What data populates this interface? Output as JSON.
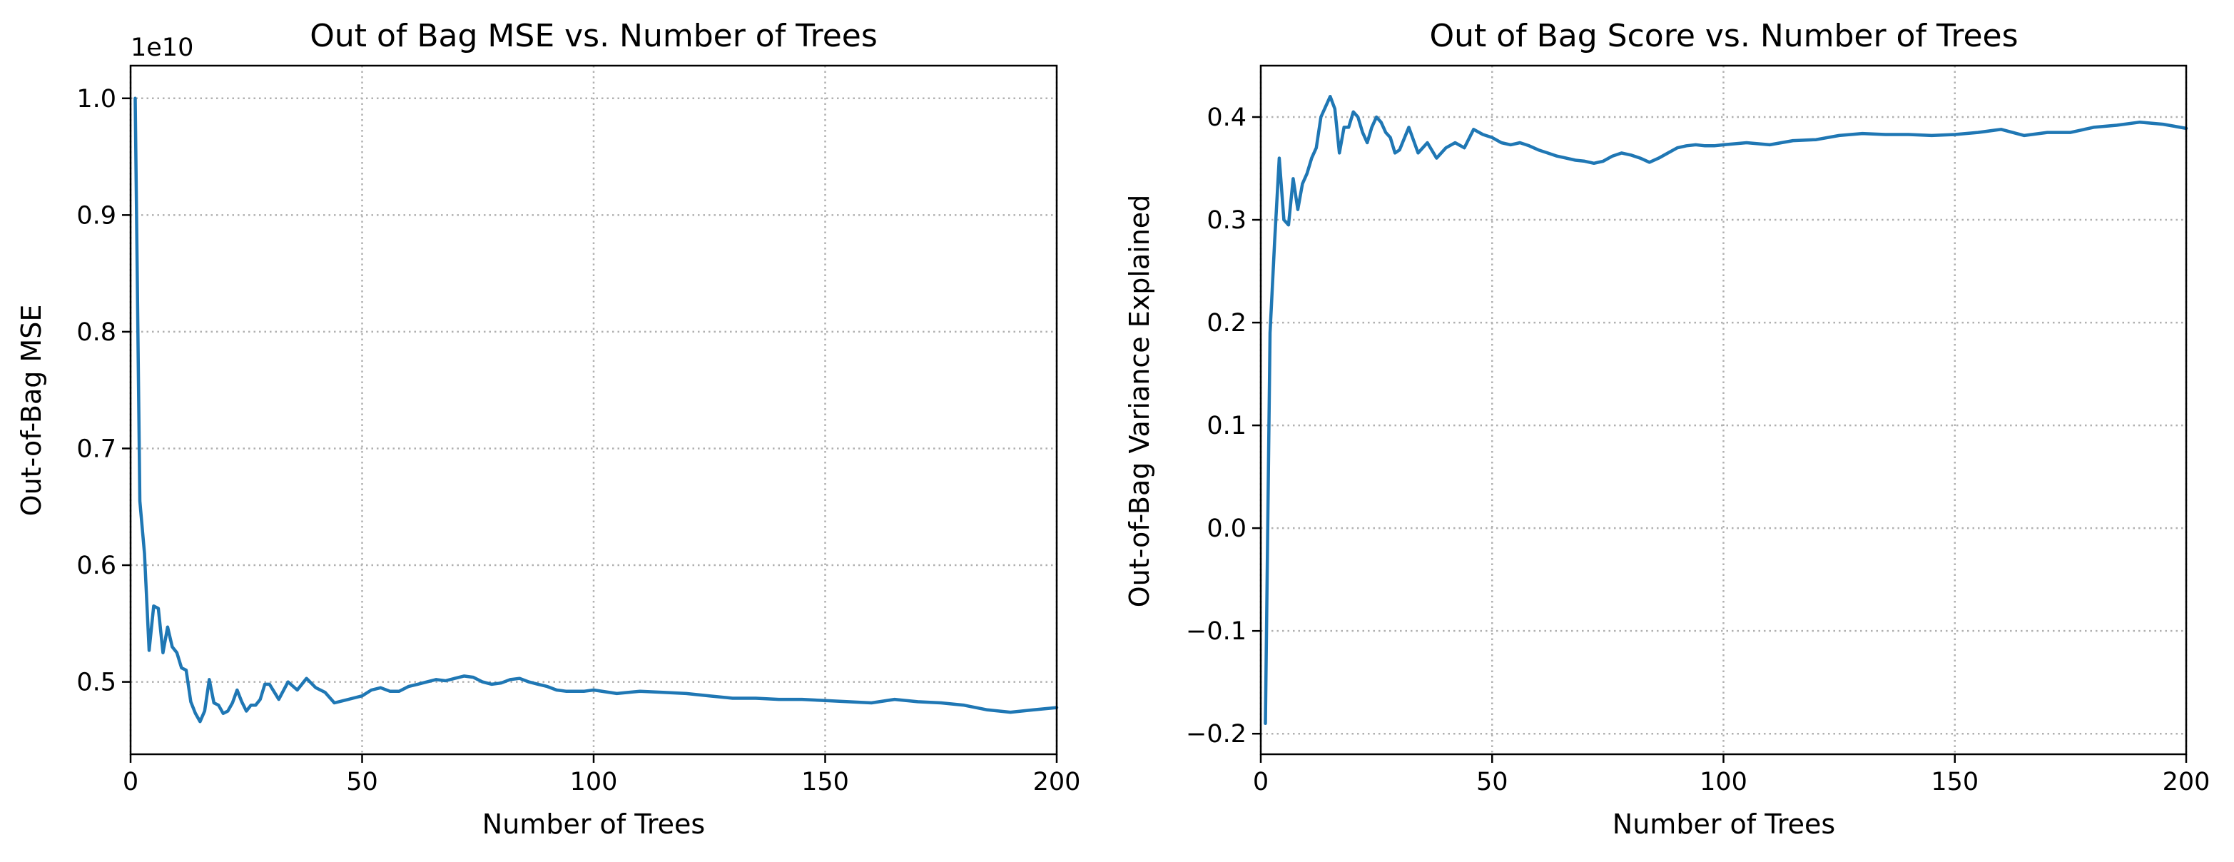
{
  "colors": {
    "line": "#1f77b4"
  },
  "chart_data": [
    {
      "type": "line",
      "title": "Out of Bag MSE vs. Number of Trees",
      "xlabel": "Number of Trees",
      "ylabel": "Out-of-Bag MSE",
      "offset_text": "1e10",
      "xlim": [
        0,
        200
      ],
      "ylim": [
        4.38,
        10.28
      ],
      "xticks": [
        0,
        50,
        100,
        150,
        200
      ],
      "xtick_labels": [
        "0",
        "50",
        "100",
        "150",
        "200"
      ],
      "yticks": [
        5.0,
        6.0,
        7.0,
        8.0,
        9.0,
        10.0
      ],
      "ytick_labels": [
        "0.5",
        "0.6",
        "0.7",
        "0.8",
        "0.9",
        "1.0"
      ],
      "grid": true,
      "series": [
        {
          "x": [
            1,
            2,
            3,
            4,
            5,
            6,
            7,
            8,
            9,
            10,
            11,
            12,
            13,
            14,
            15,
            16,
            17,
            18,
            19,
            20,
            21,
            22,
            23,
            24,
            25,
            26,
            27,
            28,
            29,
            30,
            32,
            34,
            36,
            38,
            40,
            42,
            44,
            46,
            48,
            50,
            52,
            54,
            56,
            58,
            60,
            62,
            64,
            66,
            68,
            70,
            72,
            74,
            76,
            78,
            80,
            82,
            84,
            86,
            88,
            90,
            92,
            94,
            96,
            98,
            100,
            105,
            110,
            115,
            120,
            125,
            130,
            135,
            140,
            145,
            150,
            155,
            160,
            165,
            170,
            175,
            180,
            185,
            190,
            195,
            200
          ],
          "values": [
            10.0,
            6.55,
            6.1,
            5.27,
            5.65,
            5.63,
            5.25,
            5.47,
            5.3,
            5.25,
            5.12,
            5.1,
            4.83,
            4.73,
            4.66,
            4.75,
            5.02,
            4.82,
            4.8,
            4.73,
            4.75,
            4.82,
            4.93,
            4.83,
            4.75,
            4.8,
            4.8,
            4.85,
            4.98,
            4.98,
            4.85,
            5.0,
            4.93,
            5.03,
            4.95,
            4.91,
            4.82,
            4.84,
            4.86,
            4.88,
            4.93,
            4.95,
            4.92,
            4.92,
            4.96,
            4.98,
            5.0,
            5.02,
            5.01,
            5.03,
            5.05,
            5.04,
            5.0,
            4.98,
            4.99,
            5.02,
            5.03,
            5.0,
            4.98,
            4.96,
            4.93,
            4.92,
            4.92,
            4.92,
            4.93,
            4.9,
            4.92,
            4.91,
            4.9,
            4.88,
            4.86,
            4.86,
            4.85,
            4.85,
            4.84,
            4.83,
            4.82,
            4.85,
            4.83,
            4.82,
            4.8,
            4.76,
            4.74,
            4.76,
            4.78
          ]
        }
      ]
    },
    {
      "type": "line",
      "title": "Out of Bag Score vs. Number of Trees",
      "xlabel": "Number of Trees",
      "ylabel": "Out-of-Bag Variance Explained",
      "xlim": [
        0,
        200
      ],
      "ylim": [
        -0.22,
        0.45
      ],
      "xticks": [
        0,
        50,
        100,
        150,
        200
      ],
      "xtick_labels": [
        "0",
        "50",
        "100",
        "150",
        "200"
      ],
      "yticks": [
        -0.2,
        -0.1,
        0.0,
        0.1,
        0.2,
        0.3,
        0.4
      ],
      "ytick_labels": [
        "−0.2",
        "−0.1",
        "0.0",
        "0.1",
        "0.2",
        "0.3",
        "0.4"
      ],
      "grid": true,
      "series": [
        {
          "x": [
            1,
            2,
            3,
            4,
            5,
            6,
            7,
            8,
            9,
            10,
            11,
            12,
            13,
            14,
            15,
            16,
            17,
            18,
            19,
            20,
            21,
            22,
            23,
            24,
            25,
            26,
            27,
            28,
            29,
            30,
            32,
            34,
            36,
            38,
            40,
            42,
            44,
            46,
            48,
            50,
            52,
            54,
            56,
            58,
            60,
            62,
            64,
            66,
            68,
            70,
            72,
            74,
            76,
            78,
            80,
            82,
            84,
            86,
            88,
            90,
            92,
            94,
            96,
            98,
            100,
            105,
            110,
            115,
            120,
            125,
            130,
            135,
            140,
            145,
            150,
            155,
            160,
            165,
            170,
            175,
            180,
            185,
            190,
            195,
            200
          ],
          "values": [
            -0.19,
            0.19,
            0.28,
            0.36,
            0.3,
            0.295,
            0.34,
            0.31,
            0.335,
            0.345,
            0.36,
            0.37,
            0.4,
            0.41,
            0.42,
            0.408,
            0.365,
            0.39,
            0.39,
            0.405,
            0.4,
            0.385,
            0.375,
            0.39,
            0.4,
            0.395,
            0.385,
            0.38,
            0.365,
            0.368,
            0.39,
            0.365,
            0.375,
            0.36,
            0.37,
            0.375,
            0.37,
            0.388,
            0.383,
            0.38,
            0.375,
            0.373,
            0.375,
            0.372,
            0.368,
            0.365,
            0.362,
            0.36,
            0.358,
            0.357,
            0.355,
            0.357,
            0.362,
            0.365,
            0.363,
            0.36,
            0.356,
            0.36,
            0.365,
            0.37,
            0.372,
            0.373,
            0.372,
            0.372,
            0.373,
            0.375,
            0.373,
            0.377,
            0.378,
            0.382,
            0.384,
            0.383,
            0.383,
            0.382,
            0.383,
            0.385,
            0.388,
            0.382,
            0.385,
            0.385,
            0.39,
            0.392,
            0.395,
            0.393,
            0.389
          ]
        }
      ]
    }
  ]
}
